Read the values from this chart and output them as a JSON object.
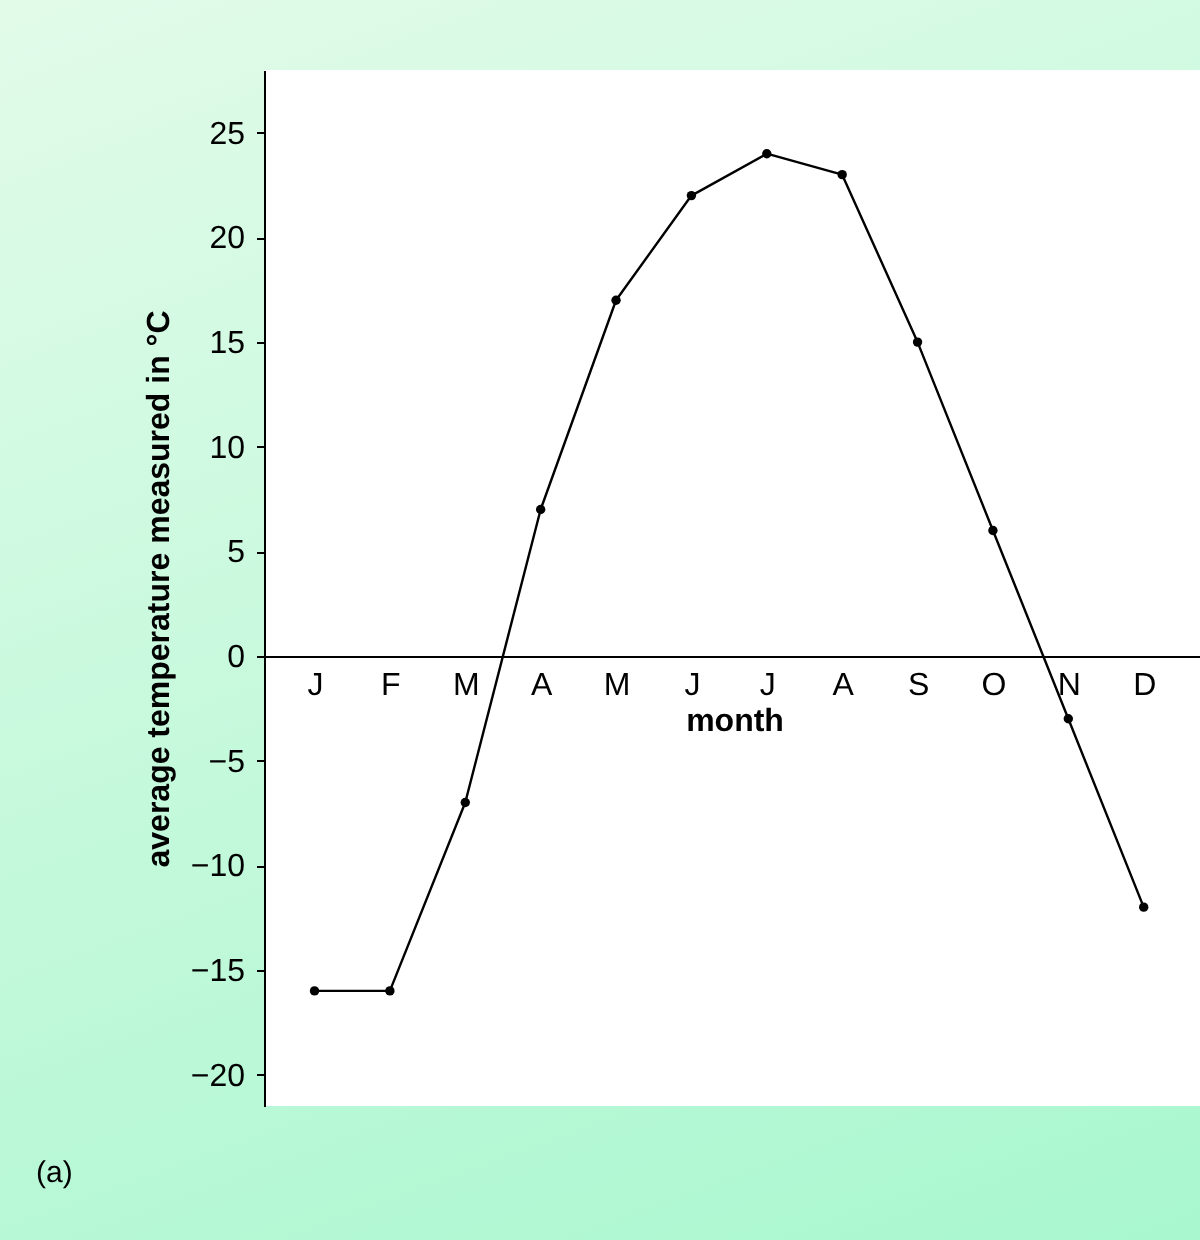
{
  "chart_data": {
    "type": "line",
    "xlabel": "month",
    "ylabel": "average temperature measured in °C",
    "categories": [
      "J",
      "F",
      "M",
      "A",
      "M",
      "J",
      "J",
      "A",
      "S",
      "O",
      "N",
      "D"
    ],
    "series": [
      {
        "color": "#000000",
        "values": [
          -16,
          -16,
          -7,
          7,
          17,
          22,
          24,
          23,
          15,
          6,
          -3,
          -12
        ]
      }
    ],
    "ylim": [
      -21.5,
      28
    ],
    "yticks": [
      -20,
      -15,
      -10,
      -5,
      0,
      5,
      10,
      15,
      20,
      25
    ],
    "grid": false,
    "marker": "circle",
    "line_style": "solid",
    "annotations": [
      "(a)"
    ]
  }
}
